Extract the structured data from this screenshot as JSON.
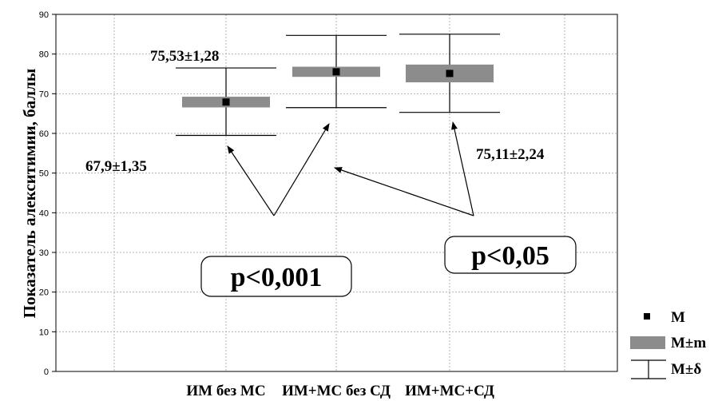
{
  "chart_data": {
    "type": "box",
    "ylabel": "Показатель алекситимии, баллы",
    "ylim": [
      0,
      90
    ],
    "yticks": [
      0,
      10,
      20,
      30,
      40,
      50,
      60,
      70,
      80,
      90
    ],
    "grid": true,
    "categories": [
      "ИМ без МС",
      "ИМ+МС без СД",
      "ИМ+МС+СД"
    ],
    "series": [
      {
        "category": "ИМ без МС",
        "mean": 67.9,
        "se_low": 66.55,
        "se_high": 69.25,
        "sd_low": 59.5,
        "sd_high": 76.5
      },
      {
        "category": "ИМ+МС без СД",
        "mean": 75.53,
        "se_low": 74.25,
        "se_high": 76.81,
        "sd_low": 66.5,
        "sd_high": 84.7
      },
      {
        "category": "ИМ+МС+СД",
        "mean": 75.11,
        "se_low": 72.87,
        "se_high": 77.35,
        "sd_low": 65.3,
        "sd_high": 85.0
      }
    ],
    "annotations": [
      "75,53±1,28",
      "67,9±1,35",
      "75,11±2,24"
    ],
    "p_labels": [
      "p<0,001",
      "p<0,05"
    ],
    "legend": {
      "placement": "right-bottom",
      "items": [
        {
          "symbol": "square",
          "label": "M"
        },
        {
          "symbol": "box",
          "label": "M±m"
        },
        {
          "symbol": "whisker",
          "label": "M±δ"
        }
      ]
    },
    "colors": {
      "box": "#8c8c8c",
      "mean": "#000000",
      "grid": "#b4b4b4"
    }
  }
}
